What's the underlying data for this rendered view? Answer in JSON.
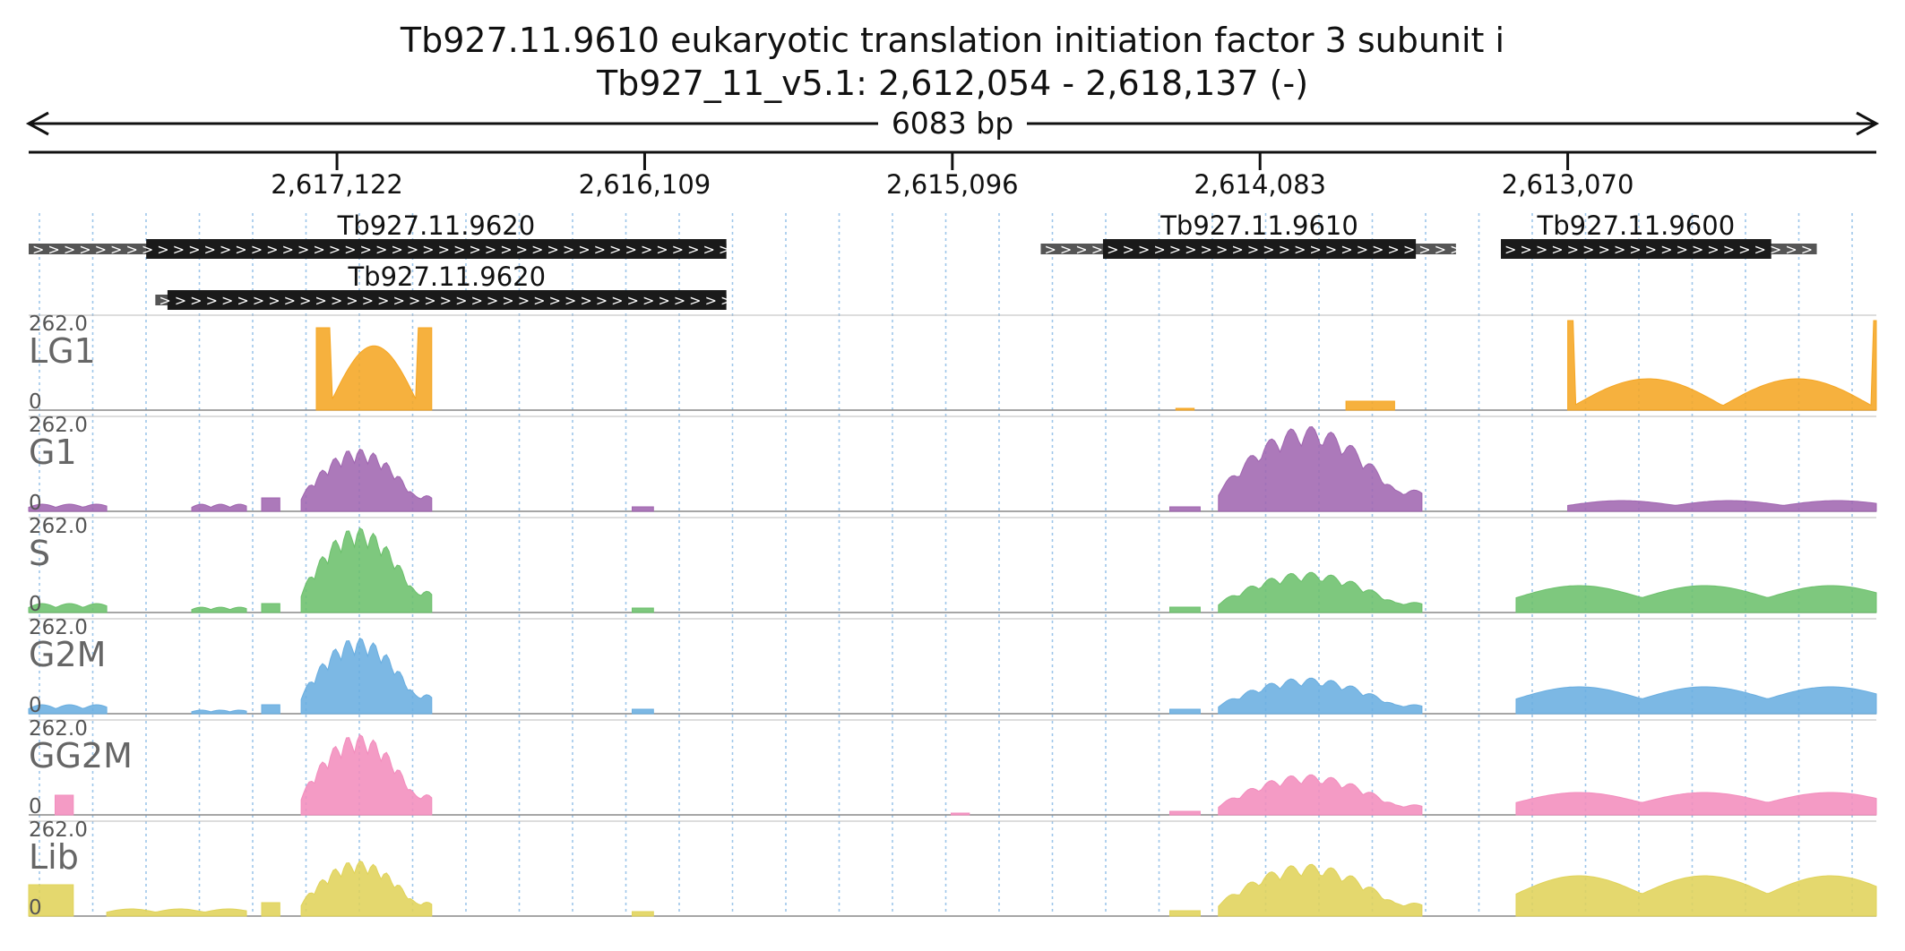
{
  "header": {
    "title": "Tb927.11.9610  eukaryotic translation initiation factor 3 subunit i",
    "locus": "Tb927_11_v5.1: 2,612,054 - 2,618,137 (-)",
    "span": "6083 bp"
  },
  "region": {
    "start": 2612054,
    "end": 2618137,
    "strand": "-"
  },
  "ruler": {
    "ticks": [
      {
        "pos": 2617122,
        "label": "2,617,122"
      },
      {
        "pos": 2616109,
        "label": "2,616,109"
      },
      {
        "pos": 2615096,
        "label": "2,615,096"
      },
      {
        "pos": 2614083,
        "label": "2,614,083"
      },
      {
        "pos": 2613070,
        "label": "2,613,070"
      }
    ]
  },
  "genes": [
    {
      "label": "Tb927.11.9620",
      "row": 0,
      "start": 2618137,
      "end": 2615840,
      "cds_start": 2617750,
      "cds_end": 2615840,
      "chevron": ">"
    },
    {
      "label": "Tb927.11.9610",
      "row": 0,
      "start": 2614805,
      "end": 2613438,
      "cds_start": 2614600,
      "cds_end": 2613570,
      "chevron": ">"
    },
    {
      "label": "Tb927.11.9600",
      "row": 0,
      "start": 2613290,
      "end": 2612250,
      "cds_start": 2613290,
      "cds_end": 2612400,
      "chevron": ">"
    },
    {
      "label": "Tb927.11.9620",
      "row": 1,
      "start": 2617720,
      "end": 2615840,
      "cds_start": 2617680,
      "cds_end": 2615840,
      "chevron": ">"
    }
  ],
  "tracks": [
    {
      "name": "LG1",
      "color": "#f5a623",
      "max": 262.0,
      "max_label": "262.0",
      "min_label": "0",
      "segments": [
        {
          "start": 2617190,
          "end": 2616810,
          "shape": "block-hump",
          "peak": 0.92
        },
        {
          "start": 2614360,
          "end": 2614300,
          "shape": "flat",
          "peak": 0.02
        },
        {
          "start": 2613800,
          "end": 2613640,
          "shape": "flat",
          "peak": 0.1
        },
        {
          "start": 2613070,
          "end": 2612054,
          "shape": "block-twin",
          "peak": 1.0
        }
      ]
    },
    {
      "name": "G1",
      "color": "#a066b0",
      "max": 262.0,
      "max_label": "262.0",
      "min_label": "0",
      "segments": [
        {
          "start": 2618137,
          "end": 2617880,
          "shape": "low",
          "peak": 0.08
        },
        {
          "start": 2617600,
          "end": 2617420,
          "shape": "low",
          "peak": 0.08
        },
        {
          "start": 2617370,
          "end": 2617310,
          "shape": "flat",
          "peak": 0.15
        },
        {
          "start": 2617240,
          "end": 2616810,
          "shape": "peaky",
          "peak": 0.7
        },
        {
          "start": 2616150,
          "end": 2616080,
          "shape": "flat",
          "peak": 0.05
        },
        {
          "start": 2614380,
          "end": 2614280,
          "shape": "flat",
          "peak": 0.05
        },
        {
          "start": 2614220,
          "end": 2613550,
          "shape": "peaky",
          "peak": 0.95
        },
        {
          "start": 2613070,
          "end": 2612054,
          "shape": "low",
          "peak": 0.12
        }
      ]
    },
    {
      "name": "S",
      "color": "#6cc06c",
      "max": 262.0,
      "max_label": "262.0",
      "min_label": "0",
      "segments": [
        {
          "start": 2618137,
          "end": 2617880,
          "shape": "low",
          "peak": 0.1
        },
        {
          "start": 2617600,
          "end": 2617420,
          "shape": "low",
          "peak": 0.06
        },
        {
          "start": 2617370,
          "end": 2617310,
          "shape": "flat",
          "peak": 0.1
        },
        {
          "start": 2617240,
          "end": 2616810,
          "shape": "peaky",
          "peak": 0.95
        },
        {
          "start": 2616150,
          "end": 2616080,
          "shape": "flat",
          "peak": 0.05
        },
        {
          "start": 2614380,
          "end": 2614280,
          "shape": "flat",
          "peak": 0.06
        },
        {
          "start": 2614220,
          "end": 2613550,
          "shape": "peaky",
          "peak": 0.45
        },
        {
          "start": 2613240,
          "end": 2612054,
          "shape": "low",
          "peak": 0.3
        }
      ]
    },
    {
      "name": "G2M",
      "color": "#6aaee0",
      "max": 262.0,
      "max_label": "262.0",
      "min_label": "0",
      "segments": [
        {
          "start": 2618137,
          "end": 2617880,
          "shape": "low",
          "peak": 0.1
        },
        {
          "start": 2617600,
          "end": 2617420,
          "shape": "low",
          "peak": 0.04
        },
        {
          "start": 2617370,
          "end": 2617310,
          "shape": "flat",
          "peak": 0.1
        },
        {
          "start": 2617240,
          "end": 2616810,
          "shape": "peaky",
          "peak": 0.85
        },
        {
          "start": 2616150,
          "end": 2616080,
          "shape": "flat",
          "peak": 0.05
        },
        {
          "start": 2614380,
          "end": 2614280,
          "shape": "flat",
          "peak": 0.05
        },
        {
          "start": 2614220,
          "end": 2613550,
          "shape": "peaky",
          "peak": 0.4
        },
        {
          "start": 2613240,
          "end": 2612054,
          "shape": "low",
          "peak": 0.3
        }
      ]
    },
    {
      "name": "GG2M",
      "color": "#f28dbd",
      "max": 262.0,
      "max_label": "262.0",
      "min_label": "0",
      "segments": [
        {
          "start": 2618050,
          "end": 2617990,
          "shape": "flat",
          "peak": 0.22
        },
        {
          "start": 2617240,
          "end": 2616810,
          "shape": "peaky",
          "peak": 0.9
        },
        {
          "start": 2615100,
          "end": 2615040,
          "shape": "flat",
          "peak": 0.02
        },
        {
          "start": 2614380,
          "end": 2614280,
          "shape": "flat",
          "peak": 0.04
        },
        {
          "start": 2614220,
          "end": 2613550,
          "shape": "peaky",
          "peak": 0.45
        },
        {
          "start": 2613240,
          "end": 2612054,
          "shape": "low",
          "peak": 0.25
        }
      ]
    },
    {
      "name": "Lib",
      "color": "#e0d35a",
      "max": 262.0,
      "max_label": "262.0",
      "min_label": "0",
      "segments": [
        {
          "start": 2618137,
          "end": 2617990,
          "shape": "flat",
          "peak": 0.35
        },
        {
          "start": 2617880,
          "end": 2617420,
          "shape": "low",
          "peak": 0.08
        },
        {
          "start": 2617370,
          "end": 2617310,
          "shape": "flat",
          "peak": 0.15
        },
        {
          "start": 2617240,
          "end": 2616810,
          "shape": "peaky",
          "peak": 0.62
        },
        {
          "start": 2616150,
          "end": 2616080,
          "shape": "flat",
          "peak": 0.05
        },
        {
          "start": 2614380,
          "end": 2614280,
          "shape": "flat",
          "peak": 0.06
        },
        {
          "start": 2614220,
          "end": 2613550,
          "shape": "peaky",
          "peak": 0.58
        },
        {
          "start": 2613240,
          "end": 2612054,
          "shape": "low",
          "peak": 0.45
        }
      ]
    }
  ]
}
